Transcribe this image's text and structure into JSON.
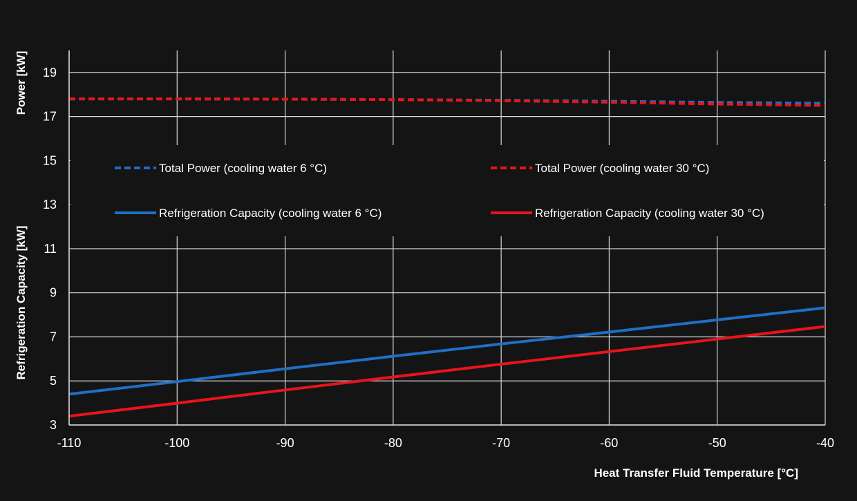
{
  "chart_data": {
    "type": "line",
    "background": "#141414",
    "grid": true,
    "xlabel": "Heat Transfer Fluid Temperature [°C]",
    "ylabel_upper": "Power [kW]",
    "ylabel_lower": "Refrigeration Capacity  [kW]",
    "xlim": [
      -110,
      -40
    ],
    "ylim": [
      3,
      20
    ],
    "x_ticks": [
      -110,
      -100,
      -90,
      -80,
      -70,
      -60,
      -50,
      -40
    ],
    "y_ticks": [
      3,
      5,
      7,
      9,
      11,
      13,
      15,
      17,
      19
    ],
    "legend_position": "inside, upper-middle, two columns",
    "series": [
      {
        "name": "Total Power (cooling water 6 °C)",
        "color": "#1f6fc5",
        "dash": true,
        "x": [
          -110,
          -100,
          -90,
          -80,
          -70,
          -60,
          -50,
          -40
        ],
        "y": [
          17.8,
          17.8,
          17.79,
          17.77,
          17.74,
          17.69,
          17.64,
          17.6
        ]
      },
      {
        "name": "Total Power (cooling water 30 °C)",
        "color": "#e8141b",
        "dash": true,
        "x": [
          -110,
          -100,
          -90,
          -80,
          -70,
          -60,
          -50,
          -40
        ],
        "y": [
          17.8,
          17.8,
          17.79,
          17.77,
          17.72,
          17.65,
          17.57,
          17.5
        ]
      },
      {
        "name": "Refrigeration Capacity (cooling water 6 °C)",
        "color": "#1f6fc5",
        "dash": false,
        "x": [
          -110,
          -100,
          -90,
          -80,
          -70,
          -60,
          -50,
          -40
        ],
        "y": [
          4.4,
          4.97,
          5.55,
          6.12,
          6.68,
          7.22,
          7.77,
          8.32
        ]
      },
      {
        "name": "Refrigeration Capacity (cooling water 30 °C)",
        "color": "#e8141b",
        "dash": false,
        "x": [
          -110,
          -100,
          -90,
          -80,
          -70,
          -60,
          -50,
          -40
        ],
        "y": [
          3.4,
          3.99,
          4.59,
          5.18,
          5.76,
          6.33,
          6.9,
          7.47
        ]
      }
    ]
  }
}
